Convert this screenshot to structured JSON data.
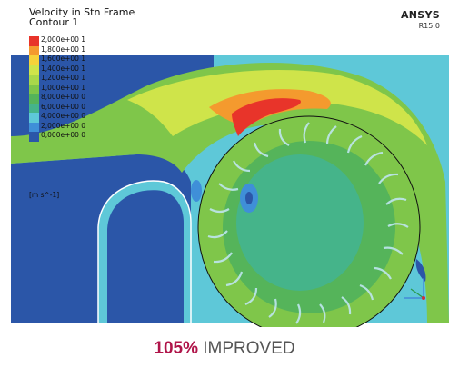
{
  "plot": {
    "title_line1": "Velocity in Stn Frame",
    "title_line2": "Contour 1",
    "brand": "ANSYS",
    "version": "R15.0",
    "units": "[m s^-1]",
    "legend": [
      {
        "label": "2,000e+00 1",
        "color": "#e8342a"
      },
      {
        "label": "1,800e+00 1",
        "color": "#f49a2e"
      },
      {
        "label": "1,600e+00 1",
        "color": "#f6d23a"
      },
      {
        "label": "1,400e+00 1",
        "color": "#cfe44a"
      },
      {
        "label": "1,200e+00 1",
        "color": "#a9d84a"
      },
      {
        "label": "1,000e+00 1",
        "color": "#7fc64a"
      },
      {
        "label": "8,000e+00 0",
        "color": "#55b45a"
      },
      {
        "label": "6,000e+00 0",
        "color": "#45b48a"
      },
      {
        "label": "4,000e+00 0",
        "color": "#5ec8d8"
      },
      {
        "label": "2,000e+00 0",
        "color": "#3f8fd8"
      },
      {
        "label": "0,000e+00 0",
        "color": "#2b56a8"
      }
    ]
  },
  "result": {
    "percent": "105%",
    "text": "IMPROVED"
  }
}
